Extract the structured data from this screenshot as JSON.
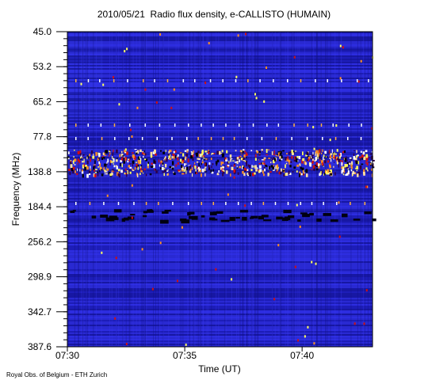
{
  "chart_data": {
    "type": "spectrogram",
    "title": "2010/05/21  Radio flux density, e-CALLISTO (HUMAIN)",
    "x_label": "Time (UT)",
    "y_label": "Frequency (MHz)",
    "credit": "Royal Obs. of Belgium - ETH Zurich",
    "xlim": [
      "07:30",
      "07:43"
    ],
    "xticks": [
      "07:30",
      "07:35",
      "07:40"
    ],
    "y_labels": [
      "45.0",
      "53.2",
      "65.2",
      "77.8",
      "138.8",
      "184.4",
      "256.2",
      "298.9",
      "342.7",
      "387.6"
    ]
  }
}
